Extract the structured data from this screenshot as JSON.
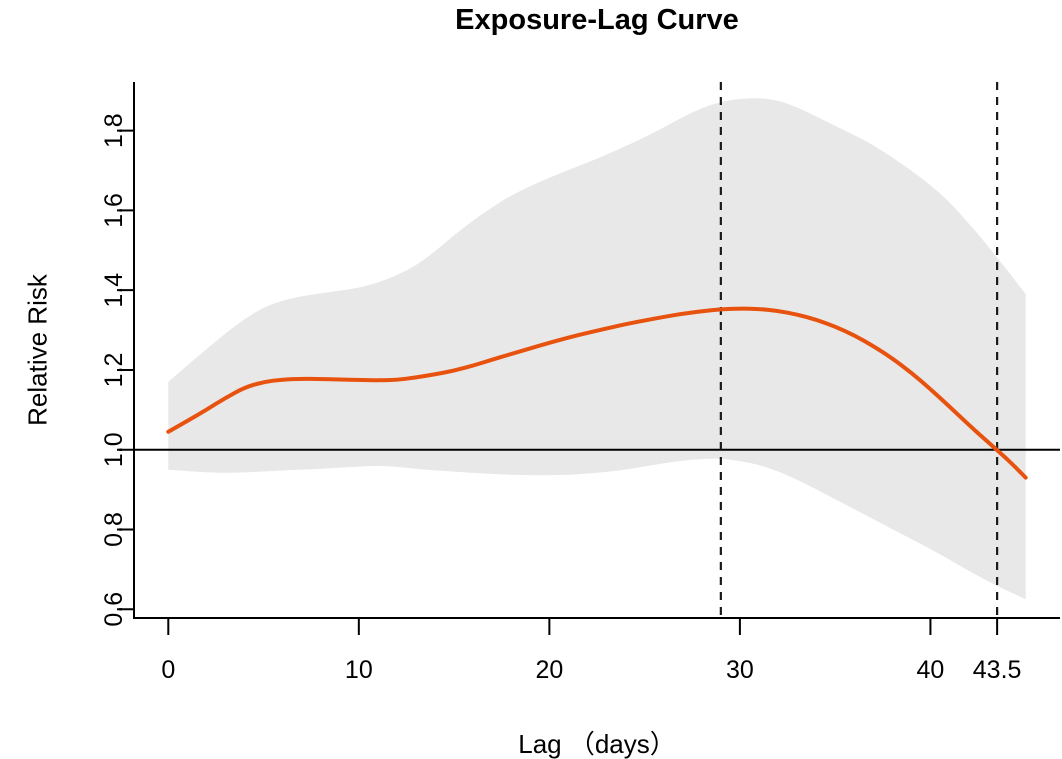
{
  "title": "Exposure-Lag Curve",
  "colors": {
    "curve": "#e8520f",
    "band": "#e8e8e8",
    "axis": "#000000",
    "reference_line": "#000000",
    "dashed_line": "#1a1a1a",
    "background": "#ffffff"
  },
  "chart_data": {
    "type": "line",
    "title": "Exposure-Lag Curve",
    "xlabel": "Lag （days）",
    "ylabel": "Relative Risk",
    "xlim": [
      -1.8,
      46.8
    ],
    "ylim": [
      0.578,
      1.922
    ],
    "grid": false,
    "legend": "none",
    "x_ticks": [
      0,
      10,
      20,
      30,
      40,
      43.5
    ],
    "x_tick_labels": [
      "0",
      "10",
      "20",
      "30",
      "40",
      "43.5"
    ],
    "y_ticks": [
      0.6,
      0.8,
      1.0,
      1.2,
      1.4,
      1.6,
      1.8
    ],
    "y_tick_labels": [
      "0.6",
      "0.8",
      "1.0",
      "1.2",
      "1.4",
      "1.6",
      "1.8"
    ],
    "reference_line_y": 1.0,
    "vertical_dashed_lines_x": [
      29,
      43.5
    ],
    "series": [
      {
        "name": "relative-risk",
        "x": [
          0,
          1,
          2,
          3,
          4,
          5,
          6,
          7,
          8,
          9,
          10,
          11,
          12,
          13,
          14,
          15,
          16,
          17,
          18,
          19,
          20,
          21,
          22,
          23,
          24,
          25,
          26,
          27,
          28,
          29,
          30,
          31,
          32,
          33,
          34,
          35,
          36,
          37,
          38,
          39,
          40,
          41,
          42,
          43,
          44,
          45
        ],
        "y": [
          1.045,
          1.072,
          1.1,
          1.13,
          1.156,
          1.17,
          1.176,
          1.178,
          1.177,
          1.176,
          1.175,
          1.174,
          1.175,
          1.181,
          1.189,
          1.198,
          1.211,
          1.226,
          1.24,
          1.254,
          1.268,
          1.281,
          1.293,
          1.304,
          1.315,
          1.324,
          1.333,
          1.341,
          1.347,
          1.352,
          1.354,
          1.353,
          1.348,
          1.339,
          1.326,
          1.309,
          1.287,
          1.26,
          1.229,
          1.193,
          1.152,
          1.108,
          1.063,
          1.02,
          0.978,
          0.93
        ]
      }
    ],
    "band": {
      "name": "confidence-interval",
      "x": [
        0,
        1,
        2,
        3,
        4,
        5,
        6,
        7,
        8,
        9,
        10,
        11,
        12,
        13,
        14,
        15,
        16,
        17,
        18,
        19,
        20,
        21,
        22,
        23,
        24,
        25,
        26,
        27,
        28,
        29,
        30,
        31,
        32,
        33,
        34,
        35,
        36,
        37,
        38,
        39,
        40,
        41,
        42,
        43,
        44,
        45
      ],
      "upper": [
        1.17,
        1.212,
        1.252,
        1.292,
        1.328,
        1.357,
        1.374,
        1.385,
        1.392,
        1.399,
        1.406,
        1.419,
        1.437,
        1.462,
        1.497,
        1.538,
        1.575,
        1.608,
        1.638,
        1.661,
        1.682,
        1.701,
        1.72,
        1.74,
        1.761,
        1.783,
        1.808,
        1.834,
        1.857,
        1.872,
        1.88,
        1.882,
        1.876,
        1.859,
        1.836,
        1.812,
        1.789,
        1.764,
        1.733,
        1.7,
        1.664,
        1.621,
        1.568,
        1.512,
        1.452,
        1.39
      ],
      "lower": [
        0.95,
        0.946,
        0.943,
        0.942,
        0.943,
        0.945,
        0.948,
        0.95,
        0.952,
        0.955,
        0.958,
        0.96,
        0.957,
        0.952,
        0.948,
        0.945,
        0.942,
        0.939,
        0.937,
        0.936,
        0.936,
        0.937,
        0.94,
        0.944,
        0.95,
        0.958,
        0.966,
        0.973,
        0.977,
        0.978,
        0.972,
        0.962,
        0.946,
        0.925,
        0.901,
        0.876,
        0.851,
        0.826,
        0.801,
        0.776,
        0.751,
        0.724,
        0.697,
        0.67,
        0.647,
        0.625
      ]
    }
  }
}
